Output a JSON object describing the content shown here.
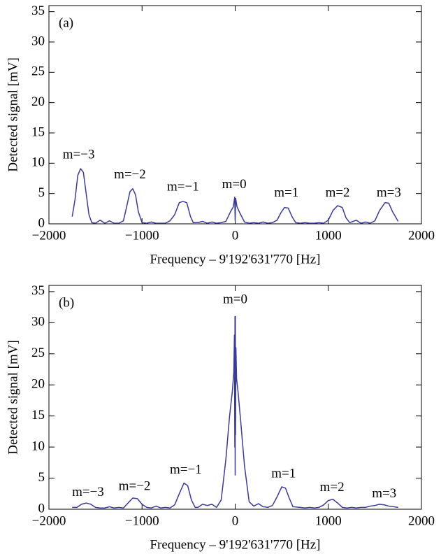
{
  "chart_data": [
    {
      "type": "line",
      "label": "(a)",
      "xlabel": "Frequency – 9'192'631'770 [Hz]",
      "ylabel": "Detected signal [mV]",
      "xlim": [
        -2000,
        2000
      ],
      "ylim": [
        0,
        36
      ],
      "xticks": [
        {
          "value": -2000,
          "label": "−2000"
        },
        {
          "value": -1000,
          "label": "−1000"
        },
        0,
        1000,
        2000
      ],
      "yticks": [
        0,
        5,
        10,
        15,
        20,
        25,
        30,
        35
      ],
      "color": "#3b3b98",
      "x": [
        -1750,
        -1720,
        -1690,
        -1660,
        -1630,
        -1600,
        -1570,
        -1540,
        -1500,
        -1450,
        -1400,
        -1350,
        -1300,
        -1250,
        -1200,
        -1170,
        -1130,
        -1100,
        -1070,
        -1040,
        -1000,
        -950,
        -900,
        -850,
        -800,
        -750,
        -700,
        -650,
        -600,
        -560,
        -520,
        -480,
        -450,
        -400,
        -350,
        -300,
        -250,
        -200,
        -150,
        -100,
        -50,
        -20,
        -5,
        0,
        5,
        20,
        50,
        100,
        150,
        200,
        250,
        300,
        350,
        400,
        450,
        490,
        530,
        570,
        610,
        650,
        700,
        750,
        800,
        850,
        900,
        950,
        1000,
        1050,
        1100,
        1150,
        1190,
        1230,
        1300,
        1350,
        1400,
        1450,
        1500,
        1550,
        1610,
        1650,
        1690,
        1750
      ],
      "values": [
        1.2,
        4,
        8,
        9.1,
        8.5,
        5,
        1.5,
        0.2,
        0.1,
        0.6,
        0.1,
        0.5,
        0.1,
        0.1,
        0.5,
        2.5,
        5.3,
        5.8,
        4.8,
        2,
        0.2,
        0.1,
        0.3,
        0.1,
        0.1,
        0.1,
        0.5,
        1.5,
        3.5,
        3.7,
        3.5,
        1.2,
        0.2,
        0.2,
        0.4,
        0.1,
        0.3,
        0.1,
        0.2,
        0.4,
        2,
        2.8,
        4.4,
        0.5,
        4.2,
        2.8,
        1.8,
        0.3,
        0.1,
        0.2,
        0.1,
        0.3,
        0.1,
        0.2,
        0.6,
        1.8,
        2.7,
        2.6,
        1.2,
        0.2,
        0.1,
        0.2,
        0.1,
        0.1,
        0.2,
        0.1,
        0.6,
        2.2,
        3,
        2.7,
        1,
        0.2,
        0.6,
        0.1,
        0.3,
        0.1,
        0.5,
        2.2,
        3.5,
        3.4,
        2,
        0.4
      ],
      "annotations": [
        {
          "text": "m=−3",
          "x": -1680,
          "y": 11.3
        },
        {
          "text": "m=−2",
          "x": -1130,
          "y": 8
        },
        {
          "text": "m=−1",
          "x": -560,
          "y": 6
        },
        {
          "text": "m=0",
          "x": -10,
          "y": 6.4
        },
        {
          "text": "m=1",
          "x": 550,
          "y": 5
        },
        {
          "text": "m=2",
          "x": 1100,
          "y": 5
        },
        {
          "text": "m=3",
          "x": 1650,
          "y": 5
        }
      ]
    },
    {
      "type": "line",
      "label": "(b)",
      "xlabel": "Frequency – 9'192'631'770 [Hz]",
      "ylabel": "Detected signal [mV]",
      "xlim": [
        -2000,
        2000
      ],
      "ylim": [
        0,
        36
      ],
      "xticks": [
        {
          "value": -2000,
          "label": "−2000"
        },
        {
          "value": -1000,
          "label": "−1000"
        },
        0,
        1000,
        2000
      ],
      "yticks": [
        0,
        5,
        10,
        15,
        20,
        25,
        30,
        35
      ],
      "color": "#3b3b98",
      "x": [
        -1750,
        -1700,
        -1650,
        -1600,
        -1550,
        -1500,
        -1450,
        -1400,
        -1350,
        -1300,
        -1250,
        -1200,
        -1150,
        -1100,
        -1050,
        -1000,
        -950,
        -900,
        -850,
        -800,
        -750,
        -700,
        -650,
        -600,
        -550,
        -510,
        -470,
        -430,
        -400,
        -350,
        -300,
        -250,
        -200,
        -150,
        -100,
        -60,
        -30,
        -15,
        -8,
        -4,
        -2,
        0,
        2,
        4,
        8,
        15,
        30,
        60,
        100,
        150,
        200,
        250,
        300,
        350,
        400,
        450,
        500,
        540,
        580,
        620,
        700,
        750,
        800,
        850,
        900,
        950,
        1000,
        1050,
        1100,
        1150,
        1200,
        1250,
        1300,
        1350,
        1400,
        1450,
        1500,
        1550,
        1600,
        1650,
        1700,
        1750
      ],
      "values": [
        0.3,
        0.3,
        0.8,
        1,
        0.8,
        0.3,
        0.2,
        0.2,
        0.4,
        0.2,
        0.3,
        0.2,
        1,
        1.8,
        1.7,
        0.8,
        0.3,
        0.2,
        0.5,
        0.2,
        0.3,
        0.2,
        0.7,
        2.5,
        4.2,
        3.8,
        1.5,
        0.3,
        0.3,
        0.8,
        0.6,
        0.8,
        0.3,
        1.5,
        8,
        15,
        19,
        22,
        28,
        10,
        31,
        5.5,
        31,
        12,
        26,
        21,
        19,
        14,
        7,
        1.2,
        0.5,
        0.9,
        0.4,
        0.3,
        0.6,
        2,
        3.6,
        3.4,
        1.8,
        0.4,
        0.3,
        0.2,
        0.3,
        0.2,
        0.3,
        0.7,
        1.4,
        1.6,
        1,
        0.3,
        0.2,
        0.3,
        0.2,
        0.3,
        0.3,
        0.5,
        0.6,
        0.8,
        0.7,
        0.5,
        0.4,
        0.3
      ],
      "annotations": [
        {
          "text": "m=−3",
          "x": -1580,
          "y": 2.6
        },
        {
          "text": "m=−2",
          "x": -1080,
          "y": 3.6
        },
        {
          "text": "m=−1",
          "x": -530,
          "y": 6.2
        },
        {
          "text": "m=0",
          "x": 0,
          "y": 33.6
        },
        {
          "text": "m=1",
          "x": 520,
          "y": 5.6
        },
        {
          "text": "m=2",
          "x": 1040,
          "y": 3.4
        },
        {
          "text": "m=3",
          "x": 1600,
          "y": 2.4
        }
      ]
    }
  ]
}
